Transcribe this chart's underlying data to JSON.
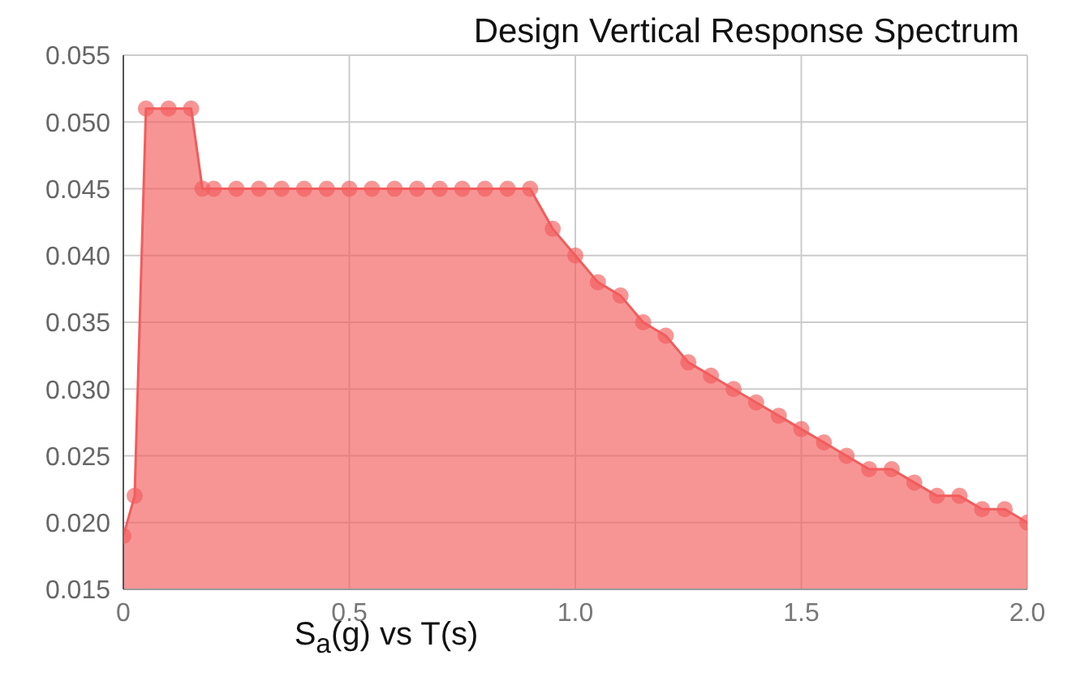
{
  "chart_data": {
    "type": "area",
    "title": "Design Vertical Response Spectrum",
    "xlabel": "S$_{a}$(g) vs T(s)",
    "x": [
      0,
      0.025,
      0.05,
      0.1,
      0.15,
      0.175,
      0.2,
      0.25,
      0.3,
      0.35,
      0.4,
      0.45,
      0.5,
      0.55,
      0.6,
      0.65,
      0.7,
      0.75,
      0.8,
      0.85,
      0.9,
      0.95,
      1.0,
      1.05,
      1.1,
      1.15,
      1.2,
      1.25,
      1.3,
      1.35,
      1.4,
      1.45,
      1.5,
      1.55,
      1.6,
      1.65,
      1.7,
      1.75,
      1.8,
      1.85,
      1.9,
      1.95,
      2.0
    ],
    "series": [
      {
        "color": "#f25c5c",
        "values": [
          0.019,
          0.022,
          0.051,
          0.051,
          0.051,
          0.045,
          0.045,
          0.045,
          0.045,
          0.045,
          0.045,
          0.045,
          0.045,
          0.045,
          0.045,
          0.045,
          0.045,
          0.045,
          0.045,
          0.045,
          0.045,
          0.042,
          0.04,
          0.038,
          0.037,
          0.035,
          0.034,
          0.032,
          0.031,
          0.03,
          0.029,
          0.028,
          0.027,
          0.026,
          0.025,
          0.024,
          0.024,
          0.023,
          0.022,
          0.022,
          0.021,
          0.021,
          0.02
        ]
      }
    ],
    "xlim": [
      0,
      2
    ],
    "xticks": [
      0,
      0.5,
      {
        "value": 1,
        "label": "1.0"
      },
      1.5,
      {
        "value": 2,
        "label": "2.0"
      }
    ],
    "ylim": [
      0.015,
      0.055
    ],
    "yticks": [
      0.015,
      {
        "value": 0.02,
        "label": "0.020"
      },
      0.025,
      {
        "value": 0.03,
        "label": "0.030"
      },
      0.035,
      {
        "value": 0.04,
        "label": "0.040"
      },
      0.045,
      {
        "value": 0.05,
        "label": "0.050"
      },
      0.055
    ],
    "grid": true,
    "marker": "circle",
    "legend": false
  }
}
